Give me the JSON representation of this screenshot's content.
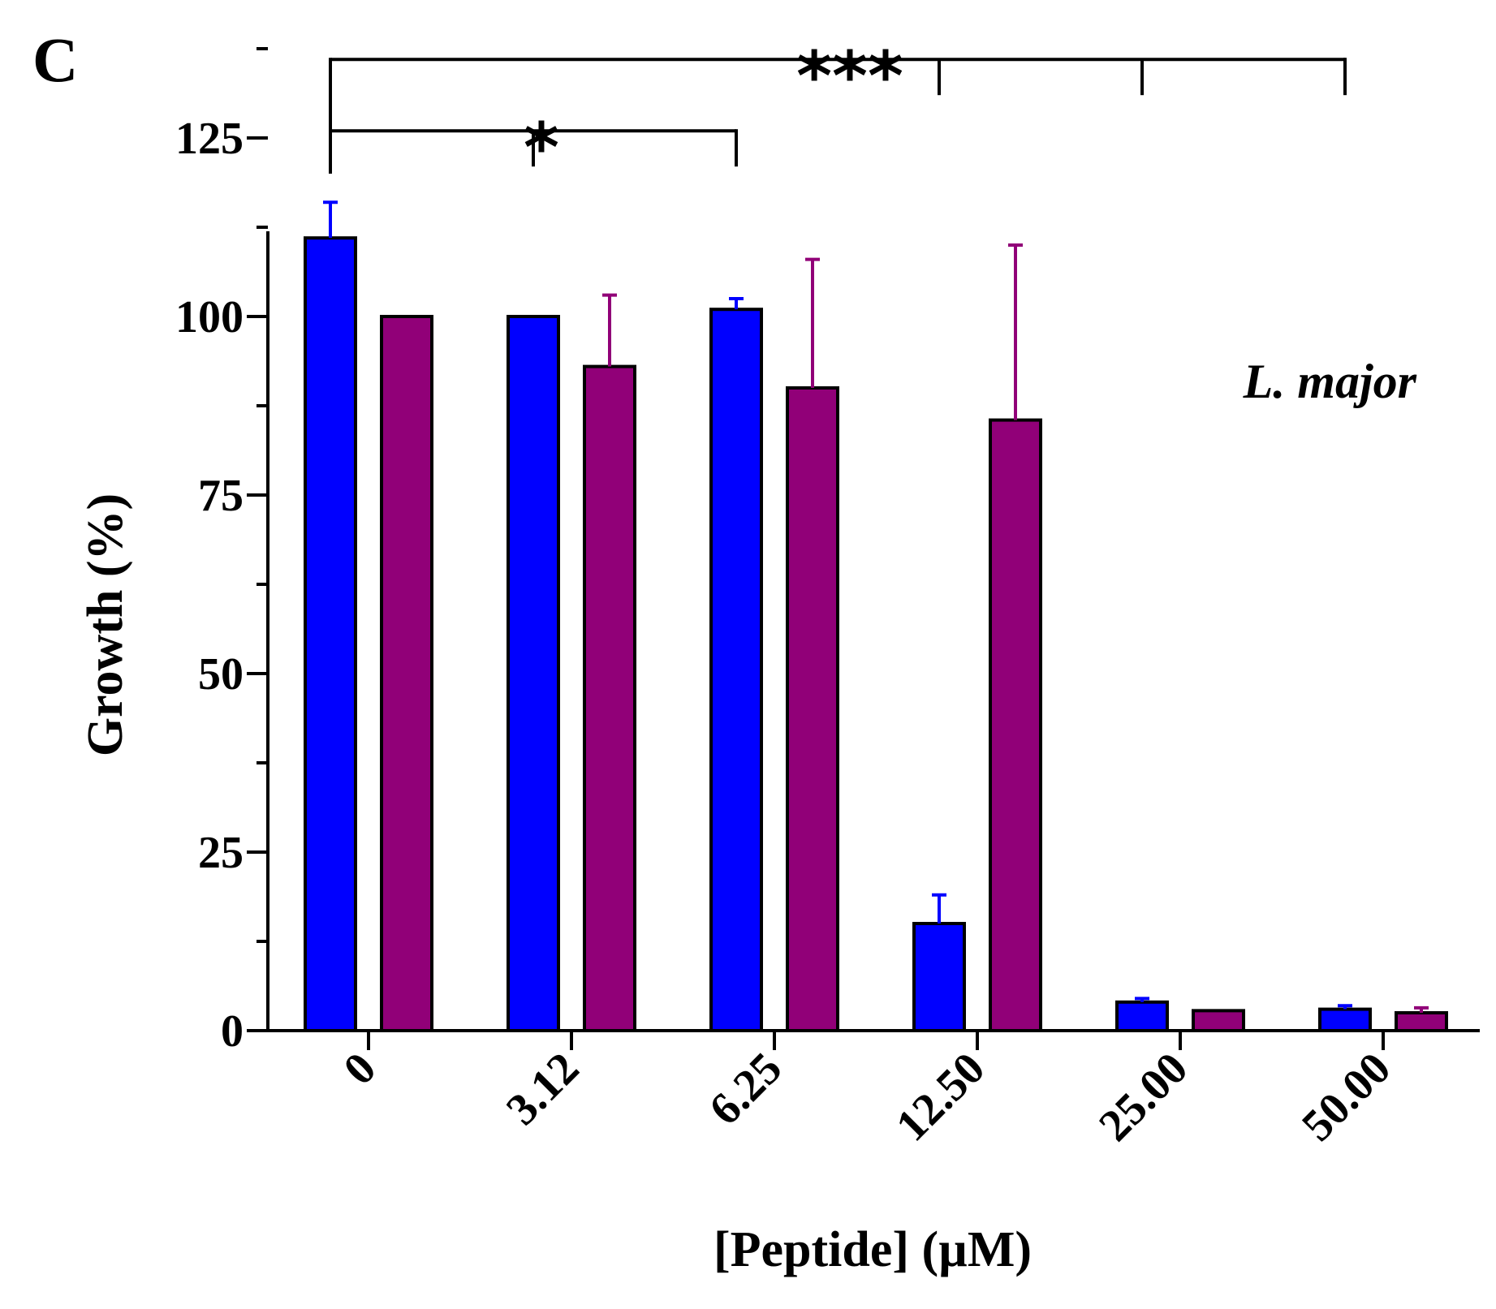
{
  "panel_label": "C",
  "chart_data": {
    "type": "bar",
    "title": "",
    "annotation": "L. major",
    "xlabel": "[Peptide] (µM)",
    "ylabel": "Growth (%)",
    "ylim": [
      0,
      138
    ],
    "yticks": [
      0,
      25,
      50,
      75,
      100,
      125
    ],
    "yminor": [
      12.5,
      37.5,
      62.5,
      87.5,
      112.5,
      137.5
    ],
    "categories": [
      "0",
      "3.12",
      "6.25",
      "12.50",
      "25.00",
      "50.00"
    ],
    "series": [
      {
        "name": "series-1",
        "color": "#0000ff",
        "errcolor": "#0000ff",
        "values": [
          111,
          100,
          101,
          15,
          4,
          3
        ],
        "errors": [
          5,
          0,
          1.5,
          4,
          0.5,
          0.5
        ]
      },
      {
        "name": "series-2",
        "color": "#910078",
        "errcolor": "#910078",
        "values": [
          100,
          93,
          90,
          85.5,
          2.8,
          2.5
        ],
        "errors": [
          0,
          10,
          18,
          24.5,
          0,
          0.7
        ]
      }
    ],
    "significance": [
      {
        "label": "*",
        "from": 0,
        "to": 2,
        "mid": 1,
        "y": 126,
        "drop_left": 5,
        "drop_right": 5
      },
      {
        "label": "***",
        "from": 0,
        "to": 5,
        "mids": [
          3,
          4
        ],
        "y": 136,
        "drop_left": 16,
        "drop_right": 5
      }
    ]
  }
}
